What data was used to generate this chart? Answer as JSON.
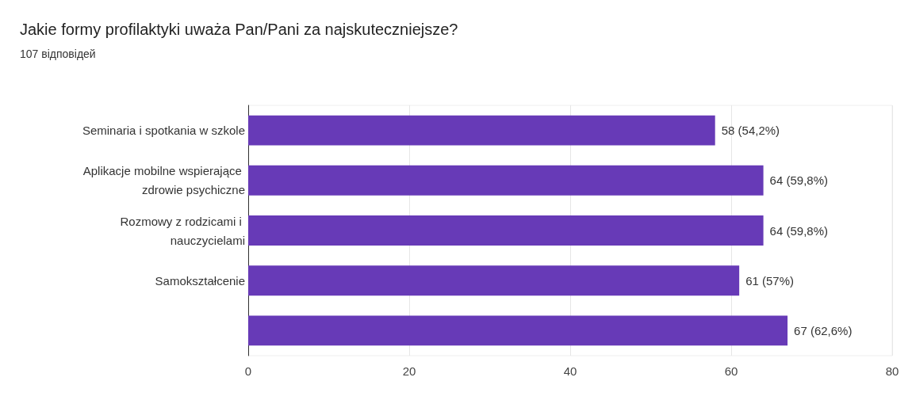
{
  "chart_data": {
    "type": "bar",
    "orientation": "horizontal",
    "title": "Jakie formy profilaktyki uważa Pan/Pani za najskuteczniejsze?",
    "subtitle": "107 відповідей",
    "categories": [
      "Seminaria i spotkania w szkole",
      "Aplikacje mobilne wspierające zdrowie psychiczne",
      "Rozmowy z rodzicami i nauczycielami",
      "Samokształcenie",
      null
    ],
    "values": [
      58,
      64,
      64,
      61,
      67
    ],
    "value_labels": [
      "58 (54,2%)",
      "64 (59,8%)",
      "64 (59,8%)",
      "61 (57%)",
      "67 (62,6%)"
    ],
    "color": "#673ab7",
    "xlim": [
      0,
      80
    ],
    "xticks": [
      0,
      20,
      40,
      60,
      80
    ],
    "grid": "x"
  }
}
